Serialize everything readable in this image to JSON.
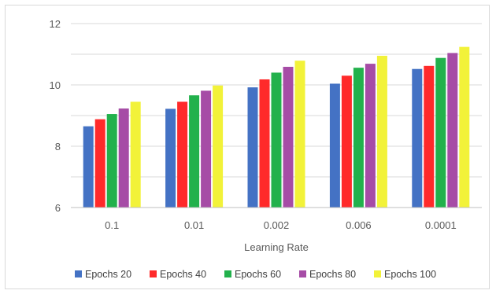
{
  "chart_data": {
    "type": "bar",
    "title": "",
    "xlabel": "Learning Rate",
    "ylabel": "",
    "ylim": [
      6,
      12
    ],
    "yticks": [
      6,
      8,
      10,
      12
    ],
    "grid": true,
    "legend": "bottom",
    "categories": [
      "0.1",
      "0.01",
      "0.002",
      "0.006",
      "0.0001"
    ],
    "series": [
      {
        "name": "Epochs 20",
        "color": "#4472c4",
        "values": [
          8.65,
          9.22,
          9.92,
          10.04,
          10.52
        ]
      },
      {
        "name": "Epochs 40",
        "color": "#ff2a2a",
        "values": [
          8.88,
          9.45,
          10.18,
          10.3,
          10.62
        ]
      },
      {
        "name": "Epochs 60",
        "color": "#22b14c",
        "values": [
          9.05,
          9.66,
          10.4,
          10.56,
          10.88
        ]
      },
      {
        "name": "Epochs 80",
        "color": "#a64ca6",
        "values": [
          9.23,
          9.81,
          10.59,
          10.69,
          11.04
        ]
      },
      {
        "name": "Epochs 100",
        "color": "#f2f239",
        "values": [
          9.45,
          9.98,
          10.79,
          10.95,
          11.24
        ]
      }
    ]
  }
}
